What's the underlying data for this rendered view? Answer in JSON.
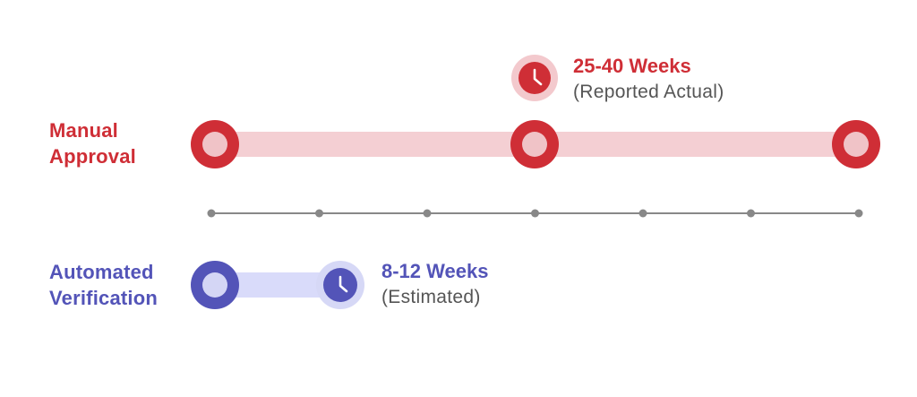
{
  "colors": {
    "manual": "#cf2e36",
    "manual_track": "#f4cfd3",
    "manual_fill": "#f0c3c7",
    "manual_halo": "#f3c9cd",
    "automated": "#5354b8",
    "automated_track": "#d9dbfa",
    "automated_fill": "#d4d6f5",
    "automated_halo": "#d6d8f6",
    "axis": "#888888"
  },
  "manual": {
    "label_line1": "Manual",
    "label_line2": "Approval",
    "callout_title": "25-40 Weeks",
    "callout_subtitle": "(Reported Actual)",
    "icon": "clock-icon"
  },
  "automated": {
    "label_line1": "Automated",
    "label_line2": "Verification",
    "callout_title": "8-12 Weeks",
    "callout_subtitle": "(Estimated)",
    "icon": "clock-icon"
  },
  "axis": {
    "tick_count": 7
  }
}
